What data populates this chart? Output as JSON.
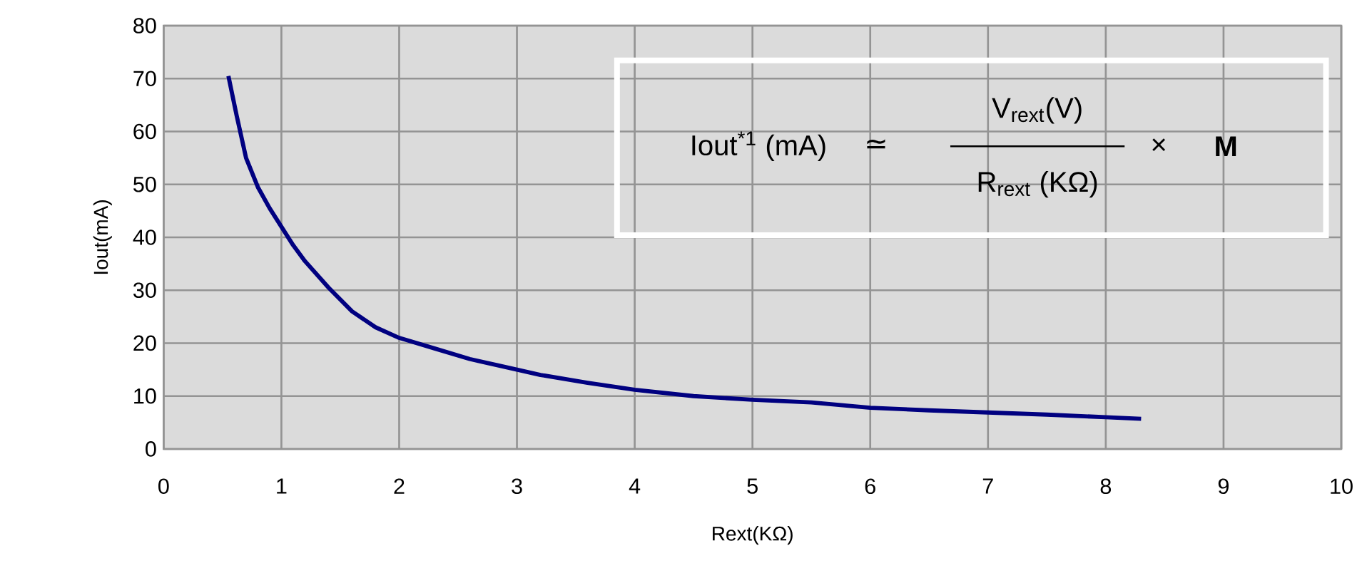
{
  "chart_data": {
    "type": "line",
    "xlabel": "Rext(KΩ)",
    "ylabel": "Iout(mA)",
    "series": [
      {
        "color": "#000080",
        "x": [
          0.55,
          0.62,
          0.7,
          0.8,
          0.9,
          1.0,
          1.1,
          1.2,
          1.4,
          1.6,
          1.8,
          2.0,
          2.3,
          2.6,
          3.0,
          3.2,
          3.6,
          4.0,
          4.5,
          5.0,
          5.5,
          6.0,
          6.5,
          7.0,
          7.5,
          8.0,
          8.3
        ],
        "values": [
          70.5,
          63,
          55,
          49.5,
          45.5,
          42,
          38.5,
          35.5,
          30.5,
          26,
          23,
          21,
          19,
          17,
          15,
          14,
          12.5,
          11.2,
          10,
          9.3,
          8.8,
          7.8,
          7.3,
          6.9,
          6.5,
          6.0,
          5.7
        ]
      }
    ],
    "xlim": [
      0,
      10
    ],
    "ylim": [
      0,
      80
    ],
    "xticks": [
      0,
      1,
      2,
      3,
      4,
      5,
      6,
      7,
      8,
      9,
      10
    ],
    "yticks": [
      0,
      10,
      20,
      30,
      40,
      50,
      60,
      70,
      80
    ],
    "grid": true,
    "marker": "none",
    "line_style": "solid",
    "annotations": [
      "Iout$^{*1}$ (mA)",
      "≃",
      "V$_{rext}$(V)",
      "R$_{rext}$ (KΩ)",
      "×",
      "**M**"
    ]
  }
}
